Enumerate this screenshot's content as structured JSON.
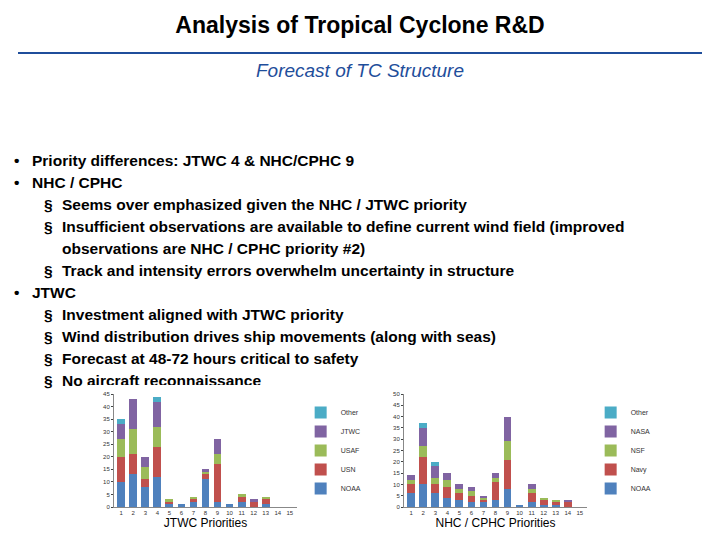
{
  "header": {
    "title": "Analysis of Tropical Cyclone R&D",
    "subtitle": "Forecast of TC Structure"
  },
  "bullets": [
    {
      "text": "Priority differences: JTWC 4 & NHC/CPHC 9",
      "sub": []
    },
    {
      "text": "NHC / CPHC",
      "sub": [
        "Seems over emphasized given the NHC / JTWC priority",
        "Insufficient observations are available to define current wind field (improved observations are NHC / CPHC priority #2)",
        "Track and intensity errors overwhelm uncertainty in structure"
      ]
    },
    {
      "text": "JTWC",
      "sub": [
        "Investment aligned with JTWC priority",
        "Wind distribution drives ship movements (along with seas)",
        "Forecast at 48-72 hours critical to safety",
        "No aircraft reconnaissance"
      ]
    }
  ],
  "chart_data": [
    {
      "type": "bar",
      "title": "JTWC Priorities",
      "stacked": true,
      "grid": false,
      "legend": "right",
      "categories": [
        "1",
        "2",
        "3",
        "4",
        "5",
        "6",
        "7",
        "8",
        "9",
        "10",
        "11",
        "12",
        "13",
        "14",
        "15"
      ],
      "series": [
        {
          "name": "NOAA",
          "color": "#4f81bd",
          "values": [
            10,
            13,
            8,
            12,
            1,
            1,
            2,
            11,
            2,
            1,
            2,
            0,
            1,
            0,
            0
          ]
        },
        {
          "name": "USN",
          "color": "#c0504d",
          "values": [
            10,
            8,
            3,
            12,
            1,
            0,
            1,
            2,
            15,
            0,
            2,
            2,
            2,
            0,
            0
          ]
        },
        {
          "name": "USAF",
          "color": "#9bbb59",
          "values": [
            7,
            10,
            5,
            8,
            1,
            0,
            1,
            1,
            4,
            0,
            1,
            0,
            1,
            0,
            0
          ]
        },
        {
          "name": "JTWC",
          "color": "#8064a2",
          "values": [
            6,
            12,
            4,
            10,
            0,
            0,
            0,
            1,
            6,
            0,
            0,
            1,
            0,
            0,
            0
          ]
        },
        {
          "name": "Other",
          "color": "#4bacc6",
          "values": [
            2,
            0,
            0,
            2,
            0,
            0,
            0,
            0,
            0,
            0,
            0,
            0,
            0,
            0,
            0
          ]
        }
      ],
      "ylim": [
        0,
        45
      ],
      "yticks": [
        0,
        5,
        10,
        15,
        20,
        25,
        30,
        35,
        40,
        45
      ]
    },
    {
      "type": "bar",
      "title": "NHC / CPHC Priorities",
      "stacked": true,
      "grid": false,
      "legend": "right",
      "categories": [
        "1",
        "2",
        "3",
        "4",
        "5",
        "6",
        "7",
        "8",
        "9",
        "10",
        "11",
        "12",
        "13",
        "14",
        "15"
      ],
      "series": [
        {
          "name": "NOAA",
          "color": "#4f81bd",
          "values": [
            6,
            10,
            6,
            4,
            3,
            2,
            2,
            3,
            8,
            1,
            2,
            1,
            1,
            0,
            0
          ]
        },
        {
          "name": "Navy",
          "color": "#c0504d",
          "values": [
            4,
            12,
            4,
            5,
            3,
            3,
            1,
            8,
            13,
            0,
            4,
            2,
            1,
            2,
            0
          ]
        },
        {
          "name": "NSF",
          "color": "#9bbb59",
          "values": [
            2,
            5,
            3,
            3,
            2,
            2,
            1,
            2,
            8,
            0,
            2,
            1,
            1,
            0,
            0
          ]
        },
        {
          "name": "NASA",
          "color": "#8064a2",
          "values": [
            2,
            8,
            5,
            3,
            2,
            2,
            1,
            2,
            11,
            0,
            2,
            0,
            0,
            1,
            0
          ]
        },
        {
          "name": "Other",
          "color": "#4bacc6",
          "values": [
            0,
            2,
            2,
            0,
            0,
            0,
            0,
            0,
            0,
            0,
            0,
            0,
            0,
            0,
            0
          ]
        }
      ],
      "ylim": [
        0,
        50
      ],
      "yticks": [
        0,
        5,
        10,
        15,
        20,
        25,
        30,
        35,
        40,
        45,
        50
      ]
    }
  ]
}
